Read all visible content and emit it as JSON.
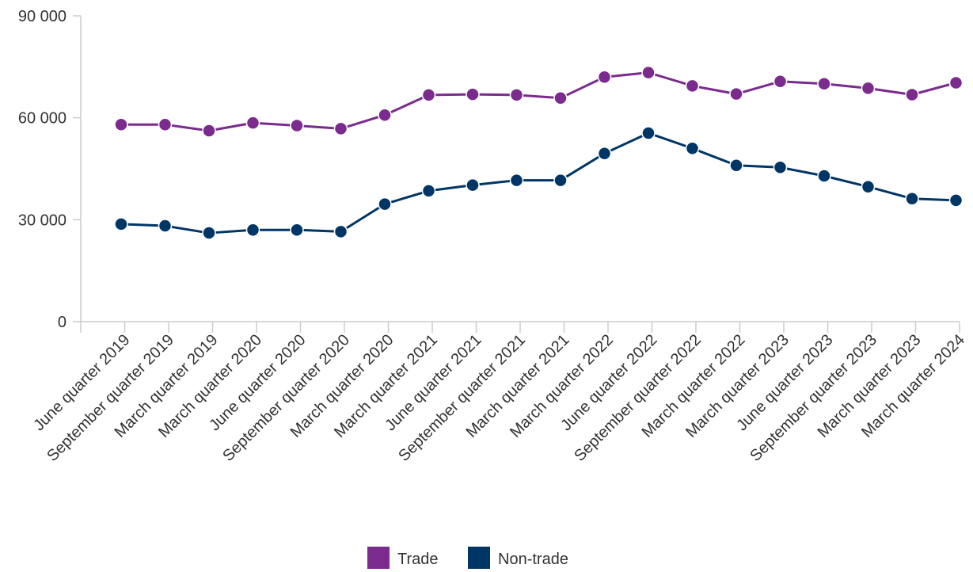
{
  "chart_data": {
    "type": "line",
    "categories": [
      "June quarter 2019",
      "September quarter 2019",
      "March quarter 2019",
      "March quarter 2020",
      "June quarter 2020",
      "September quarter 2020",
      "March quarter 2020",
      "March quarter 2021",
      "June quarter 2021",
      "September quarter 2021",
      "March quarter 2021",
      "March quarter 2022",
      "June quarter 2022",
      "September quarter 2022",
      "March quarter 2022",
      "March quarter 2023",
      "June quarter 2023",
      "September quarter 2023",
      "March quarter 2023",
      "March quarter 2024"
    ],
    "series": [
      {
        "name": "Trade",
        "color": "#7b2a8e",
        "values": [
          58000,
          58000,
          56200,
          58500,
          57700,
          56800,
          60800,
          66700,
          66900,
          66700,
          65800,
          72000,
          73300,
          69400,
          67000,
          70700,
          70000,
          68700,
          66800,
          70300
        ]
      },
      {
        "name": "Non-trade",
        "color": "#003665",
        "values": [
          28700,
          28200,
          26100,
          27000,
          27000,
          26500,
          34600,
          38500,
          40200,
          41600,
          41600,
          49500,
          55500,
          51000,
          46000,
          45400,
          42900,
          39700,
          36200,
          35700
        ]
      }
    ],
    "yticks": [
      0,
      30000,
      60000,
      90000
    ],
    "ytick_labels": [
      "0",
      "30 000",
      "60 000",
      "90 000"
    ],
    "ylim": [
      0,
      90000
    ],
    "legend_position": "bottom-center"
  }
}
